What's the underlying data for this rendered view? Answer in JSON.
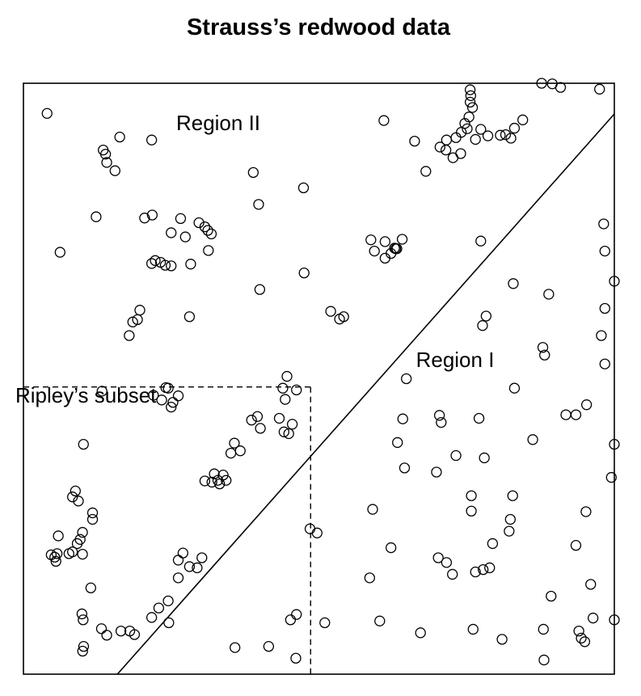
{
  "chart_data": {
    "type": "scatter",
    "title": "Strauss’s redwood data",
    "xlabel": "",
    "ylabel": "",
    "xlim": [
      0,
      1
    ],
    "ylim": [
      0,
      1
    ],
    "grid": false,
    "marker": "open-circle",
    "annotations": {
      "region_1": "Region I",
      "region_2": "Region II",
      "subset": "Ripley’s subset"
    },
    "dividing_line": {
      "x": [
        0.159,
        1.0
      ],
      "y": [
        0.0,
        0.948
      ]
    },
    "subset_box": {
      "x": [
        0.0,
        0.486
      ],
      "y": [
        0.0,
        0.486
      ]
    },
    "points": [
      [
        0.04,
        0.949
      ],
      [
        0.163,
        0.909
      ],
      [
        0.135,
        0.887
      ],
      [
        0.139,
        0.88
      ],
      [
        0.141,
        0.866
      ],
      [
        0.155,
        0.852
      ],
      [
        0.217,
        0.904
      ],
      [
        0.389,
        0.849
      ],
      [
        0.474,
        0.823
      ],
      [
        0.398,
        0.795
      ],
      [
        0.123,
        0.774
      ],
      [
        0.205,
        0.772
      ],
      [
        0.218,
        0.777
      ],
      [
        0.266,
        0.771
      ],
      [
        0.297,
        0.764
      ],
      [
        0.307,
        0.757
      ],
      [
        0.312,
        0.751
      ],
      [
        0.318,
        0.745
      ],
      [
        0.25,
        0.747
      ],
      [
        0.274,
        0.74
      ],
      [
        0.313,
        0.717
      ],
      [
        0.062,
        0.714
      ],
      [
        0.223,
        0.7
      ],
      [
        0.217,
        0.695
      ],
      [
        0.232,
        0.697
      ],
      [
        0.24,
        0.692
      ],
      [
        0.25,
        0.691
      ],
      [
        0.283,
        0.694
      ],
      [
        0.475,
        0.679
      ],
      [
        0.197,
        0.616
      ],
      [
        0.193,
        0.6
      ],
      [
        0.185,
        0.596
      ],
      [
        0.179,
        0.573
      ],
      [
        0.281,
        0.605
      ],
      [
        0.4,
        0.651
      ],
      [
        0.52,
        0.614
      ],
      [
        0.535,
        0.601
      ],
      [
        0.542,
        0.605
      ],
      [
        0.588,
        0.735
      ],
      [
        0.612,
        0.732
      ],
      [
        0.594,
        0.716
      ],
      [
        0.612,
        0.704
      ],
      [
        0.622,
        0.712
      ],
      [
        0.63,
        0.72
      ],
      [
        0.632,
        0.72
      ],
      [
        0.628,
        0.721
      ],
      [
        0.641,
        0.736
      ],
      [
        0.61,
        0.937
      ],
      [
        0.662,
        0.902
      ],
      [
        0.681,
        0.851
      ],
      [
        0.705,
        0.892
      ],
      [
        0.715,
        0.887
      ],
      [
        0.727,
        0.874
      ],
      [
        0.74,
        0.881
      ],
      [
        0.765,
        0.905
      ],
      [
        0.751,
        0.923
      ],
      [
        0.747,
        0.932
      ],
      [
        0.774,
        0.922
      ],
      [
        0.786,
        0.911
      ],
      [
        0.807,
        0.912
      ],
      [
        0.816,
        0.913
      ],
      [
        0.825,
        0.907
      ],
      [
        0.831,
        0.924
      ],
      [
        0.845,
        0.938
      ],
      [
        0.716,
        0.904
      ],
      [
        0.732,
        0.908
      ],
      [
        0.741,
        0.917
      ],
      [
        0.754,
        0.943
      ],
      [
        0.756,
        0.968
      ],
      [
        0.757,
        0.979
      ],
      [
        0.76,
        0.959
      ],
      [
        0.756,
        0.989
      ],
      [
        0.877,
        1.0
      ],
      [
        0.895,
        0.999
      ],
      [
        0.909,
        0.993
      ],
      [
        0.774,
        0.733
      ],
      [
        0.829,
        0.661
      ],
      [
        0.889,
        0.643
      ],
      [
        0.975,
        0.99
      ],
      [
        0.982,
        0.762
      ],
      [
        0.984,
        0.716
      ],
      [
        1.0,
        0.665
      ],
      [
        0.984,
        0.619
      ],
      [
        0.978,
        0.573
      ],
      [
        0.984,
        0.525
      ],
      [
        0.783,
        0.606
      ],
      [
        0.777,
        0.59
      ],
      [
        0.879,
        0.553
      ],
      [
        0.882,
        0.54
      ],
      [
        0.648,
        0.5
      ],
      [
        0.642,
        0.432
      ],
      [
        0.704,
        0.438
      ],
      [
        0.707,
        0.426
      ],
      [
        0.771,
        0.433
      ],
      [
        0.831,
        0.484
      ],
      [
        0.953,
        0.456
      ],
      [
        0.918,
        0.439
      ],
      [
        0.935,
        0.439
      ],
      [
        0.633,
        0.392
      ],
      [
        0.645,
        0.349
      ],
      [
        0.732,
        0.37
      ],
      [
        0.78,
        0.366
      ],
      [
        0.862,
        0.397
      ],
      [
        0.1016,
        0.389
      ],
      [
        1.022,
        0.389
      ],
      [
        0.995,
        0.333
      ],
      [
        0.591,
        0.279
      ],
      [
        0.699,
        0.342
      ],
      [
        0.758,
        0.302
      ],
      [
        0.758,
        0.276
      ],
      [
        0.828,
        0.302
      ],
      [
        0.824,
        0.262
      ],
      [
        0.822,
        0.242
      ],
      [
        0.794,
        0.221
      ],
      [
        0.952,
        0.275
      ],
      [
        0.935,
        0.218
      ],
      [
        0.622,
        0.214
      ],
      [
        0.702,
        0.197
      ],
      [
        0.716,
        0.189
      ],
      [
        0.726,
        0.169
      ],
      [
        0.765,
        0.173
      ],
      [
        0.778,
        0.177
      ],
      [
        0.789,
        0.18
      ],
      [
        0.1,
        0.203
      ],
      [
        0.586,
        0.163
      ],
      [
        0.96,
        0.152
      ],
      [
        0.893,
        0.132
      ],
      [
        0.603,
        0.09
      ],
      [
        0.672,
        0.07
      ],
      [
        0.761,
        0.076
      ],
      [
        0.81,
        0.059
      ],
      [
        0.88,
        0.076
      ],
      [
        0.94,
        0.073
      ],
      [
        0.944,
        0.061
      ],
      [
        0.95,
        0.055
      ],
      [
        0.964,
        0.095
      ],
      [
        1.0,
        0.092
      ],
      [
        0.881,
        0.024
      ],
      [
        0.1002,
        0.039
      ],
      [
        0.1019,
        0.047
      ],
      [
        0.452,
        0.092
      ],
      [
        0.462,
        0.101
      ],
      [
        0.51,
        0.087
      ],
      [
        0.485,
        0.246
      ],
      [
        0.497,
        0.239
      ],
      [
        0.358,
        0.045
      ],
      [
        0.415,
        0.047
      ],
      [
        0.461,
        0.027
      ],
      [
        0.133,
        0.479
      ],
      [
        0.22,
        0.472
      ],
      [
        0.234,
        0.464
      ],
      [
        0.241,
        0.485
      ],
      [
        0.245,
        0.484
      ],
      [
        0.25,
        0.452
      ],
      [
        0.253,
        0.46
      ],
      [
        0.262,
        0.471
      ],
      [
        0.386,
        0.43
      ],
      [
        0.396,
        0.436
      ],
      [
        0.401,
        0.416
      ],
      [
        0.433,
        0.433
      ],
      [
        0.443,
        0.465
      ],
      [
        0.439,
        0.484
      ],
      [
        0.446,
        0.504
      ],
      [
        0.441,
        0.41
      ],
      [
        0.449,
        0.407
      ],
      [
        0.455,
        0.423
      ],
      [
        0.462,
        0.481
      ],
      [
        0.357,
        0.391
      ],
      [
        0.367,
        0.378
      ],
      [
        0.351,
        0.374
      ],
      [
        0.323,
        0.339
      ],
      [
        0.343,
        0.328
      ],
      [
        0.338,
        0.337
      ],
      [
        0.332,
        0.322
      ],
      [
        0.329,
        0.328
      ],
      [
        0.319,
        0.325
      ],
      [
        0.307,
        0.327
      ],
      [
        0.083,
        0.3
      ],
      [
        0.088,
        0.31
      ],
      [
        0.093,
        0.293
      ],
      [
        0.117,
        0.273
      ],
      [
        0.117,
        0.262
      ],
      [
        0.059,
        0.234
      ],
      [
        0.1,
        0.24
      ],
      [
        0.096,
        0.228
      ],
      [
        0.091,
        0.221
      ],
      [
        0.053,
        0.198
      ],
      [
        0.047,
        0.202
      ],
      [
        0.055,
        0.191
      ],
      [
        0.077,
        0.204
      ],
      [
        0.083,
        0.207
      ],
      [
        0.057,
        0.204
      ],
      [
        0.114,
        0.146
      ],
      [
        0.099,
        0.102
      ],
      [
        0.101,
        0.092
      ],
      [
        0.132,
        0.077
      ],
      [
        0.141,
        0.066
      ],
      [
        0.165,
        0.073
      ],
      [
        0.18,
        0.073
      ],
      [
        0.188,
        0.067
      ],
      [
        0.217,
        0.096
      ],
      [
        0.229,
        0.112
      ],
      [
        0.246,
        0.087
      ],
      [
        0.245,
        0.124
      ],
      [
        0.262,
        0.163
      ],
      [
        0.262,
        0.193
      ],
      [
        0.27,
        0.205
      ],
      [
        0.281,
        0.182
      ],
      [
        0.294,
        0.18
      ],
      [
        0.302,
        0.197
      ]
    ]
  }
}
